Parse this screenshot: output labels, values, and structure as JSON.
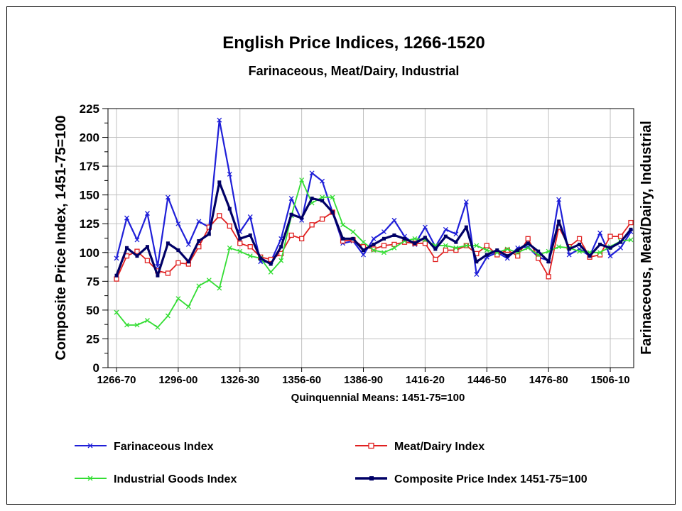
{
  "chart_data": {
    "type": "line",
    "title": "English Price Indices, 1266-1520",
    "subtitle": "Farinaceous, Meat/Dairy, Industrial",
    "ylabel": "Composite Price Index, 1451-75=100",
    "ylabel_right": "Farinaceous, Meat/Dairy, Industrial",
    "xlabel": "Quinquennial Means: 1451-75=100",
    "ylim": [
      0,
      225
    ],
    "yticks": [
      0,
      25,
      50,
      75,
      100,
      125,
      150,
      175,
      200,
      225
    ],
    "grid": true,
    "legend_position": "bottom",
    "x": [
      "1266-70",
      "1271-75",
      "1276-80",
      "1281-85",
      "1286-90",
      "1291-95",
      "1296-00",
      "1301-05",
      "1306-10",
      "1311-15",
      "1316-20",
      "1321-25",
      "1326-30",
      "1331-35",
      "1336-40",
      "1341-45",
      "1346-50",
      "1351-55",
      "1356-60",
      "1361-65",
      "1366-70",
      "1371-75",
      "1376-80",
      "1381-85",
      "1386-90",
      "1391-95",
      "1396-00",
      "1401-05",
      "1406-10",
      "1411-15",
      "1416-20",
      "1421-25",
      "1426-30",
      "1431-35",
      "1436-40",
      "1441-45",
      "1446-50",
      "1451-55",
      "1456-60",
      "1461-65",
      "1466-70",
      "1471-75",
      "1476-80",
      "1481-85",
      "1486-90",
      "1491-95",
      "1496-00",
      "1501-05",
      "1506-10",
      "1511-15",
      "1516-20"
    ],
    "xtick_labels": [
      "1266-70",
      "1296-00",
      "1326-30",
      "1356-60",
      "1386-90",
      "1416-20",
      "1446-50",
      "1476-80",
      "1506-10"
    ],
    "series": [
      {
        "name": "Farinaceous Index",
        "color": "#1f1fd8",
        "marker": "x",
        "values": [
          95,
          130,
          111,
          134,
          88,
          148,
          125,
          107,
          127,
          122,
          215,
          168,
          118,
          131,
          92,
          92,
          112,
          147,
          128,
          169,
          162,
          135,
          108,
          110,
          98,
          112,
          118,
          128,
          114,
          107,
          122,
          105,
          120,
          116,
          144,
          81,
          96,
          100,
          95,
          104,
          105,
          96,
          93,
          146,
          98,
          103,
          97,
          117,
          97,
          104,
          118
        ]
      },
      {
        "name": "Meat/Dairy Index",
        "color": "#e02020",
        "marker": "square",
        "values": [
          77,
          97,
          101,
          93,
          84,
          82,
          91,
          90,
          105,
          122,
          132,
          123,
          108,
          105,
          96,
          94,
          99,
          115,
          112,
          124,
          129,
          135,
          110,
          111,
          105,
          103,
          106,
          107,
          109,
          108,
          108,
          94,
          102,
          102,
          106,
          99,
          106,
          98,
          102,
          97,
          112,
          95,
          79,
          122,
          105,
          112,
          96,
          98,
          114,
          114,
          126
        ]
      },
      {
        "name": "Industrial Goods Index",
        "color": "#33dd33",
        "marker": "x",
        "values": [
          48,
          37,
          37,
          41,
          35,
          45,
          60,
          53,
          71,
          76,
          69,
          104,
          101,
          97,
          95,
          83,
          93,
          132,
          163,
          143,
          148,
          148,
          124,
          118,
          109,
          102,
          100,
          104,
          110,
          112,
          111,
          106,
          106,
          104,
          106,
          106,
          102,
          100,
          103,
          100,
          104,
          98,
          101,
          105,
          104,
          101,
          100,
          100,
          105,
          110,
          111
        ]
      },
      {
        "name": "Composite Price Index 1451-75=100",
        "color": "#000066",
        "marker": "square",
        "values": [
          80,
          104,
          97,
          105,
          80,
          108,
          102,
          92,
          110,
          116,
          161,
          138,
          112,
          115,
          95,
          90,
          105,
          133,
          130,
          147,
          145,
          135,
          112,
          112,
          102,
          107,
          112,
          115,
          112,
          108,
          113,
          103,
          114,
          109,
          122,
          92,
          98,
          102,
          97,
          102,
          108,
          101,
          92,
          127,
          103,
          107,
          97,
          107,
          104,
          109,
          120
        ]
      }
    ]
  }
}
